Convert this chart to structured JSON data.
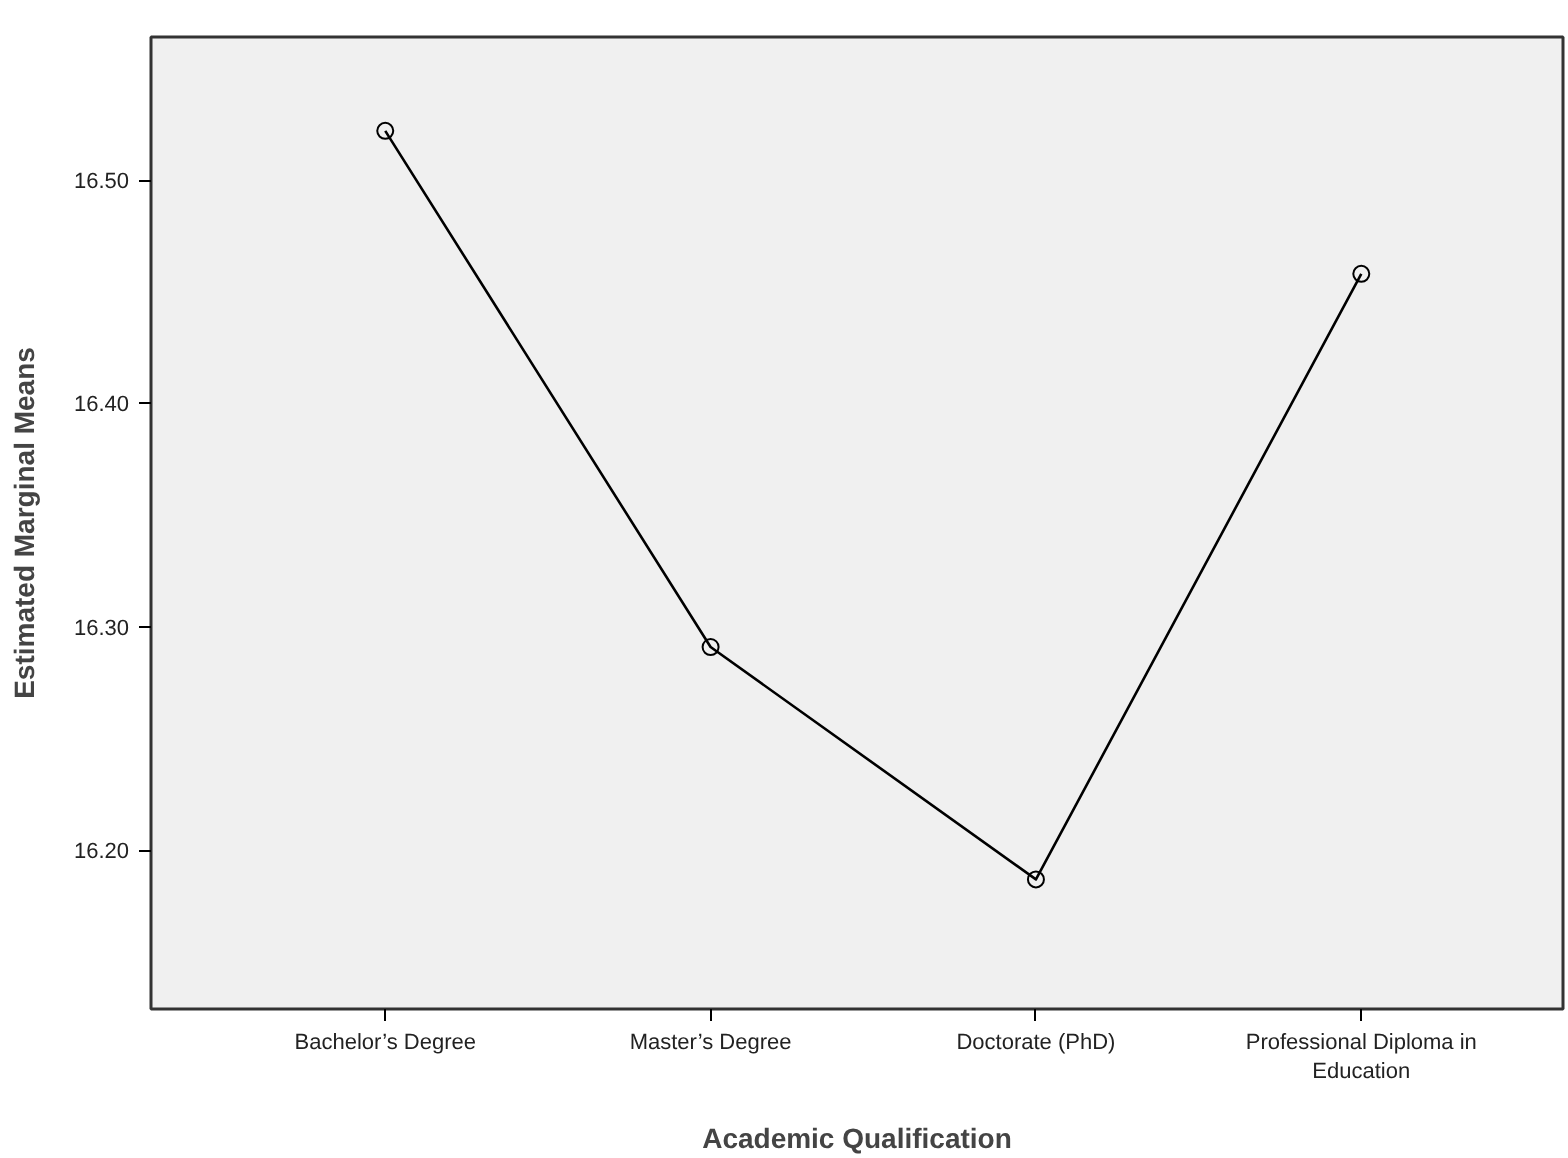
{
  "chart_data": {
    "type": "line",
    "xlabel": "Academic Qualification",
    "ylabel": "Estimated Marginal Means",
    "categories": [
      "Bachelor’s Degree",
      "Master’s Degree",
      "Doctorate (PhD)",
      "Professional Diploma in Education"
    ],
    "series": [
      {
        "color": "#000000",
        "values": [
          16.522,
          16.291,
          16.187,
          16.458
        ]
      }
    ],
    "ylim": [
      16.129,
      16.564
    ],
    "yticks": [
      {
        "value": 16.2,
        "label": "16.20"
      },
      {
        "value": 16.3,
        "label": "16.30"
      },
      {
        "value": 16.4,
        "label": "16.40"
      },
      {
        "value": 16.5,
        "label": "16.50"
      }
    ],
    "grid": false,
    "marker": "circle",
    "line_style": "solid"
  }
}
